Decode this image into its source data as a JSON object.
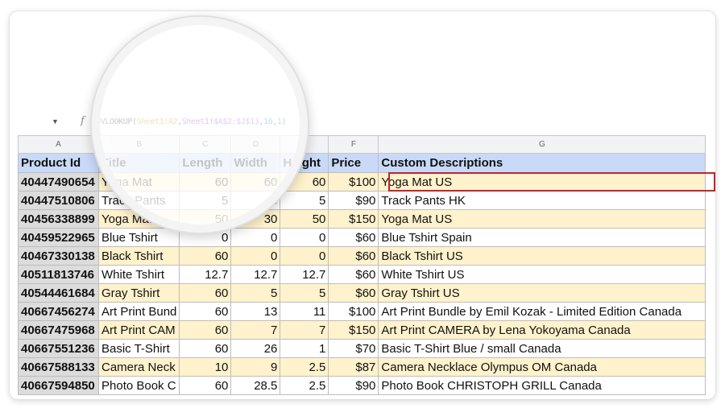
{
  "formula": {
    "func": "=VLOOKUP(",
    "ref1": "Sheet1!A2",
    "comma1": ",",
    "ref2": "Sheet1!$A$2:$J$13",
    "comma2": ",",
    "num1": "10",
    "comma3": ",",
    "num2": "1",
    "close": ")"
  },
  "icons": {
    "name_box_arrow": "dropdown-arrow-icon",
    "fx": "fx-icon"
  },
  "column_letters": [
    "A",
    "B",
    "C",
    "D",
    "E",
    "F",
    "G"
  ],
  "headers": [
    "Product Id",
    "Title",
    "Length",
    "Width",
    "Height",
    "Price",
    "Custom Descriptions"
  ],
  "rows": [
    {
      "id": "40447490654",
      "title": "Yoga Mat",
      "length": "60",
      "width": "60",
      "height": "60",
      "price": "$100",
      "desc": "Yoga Mat US"
    },
    {
      "id": "40447510806",
      "title": "Track Pants",
      "length": "5",
      "width": "5",
      "height": "5",
      "price": "$90",
      "desc": "Track Pants HK"
    },
    {
      "id": "40456338899",
      "title": "Yoga Mat",
      "length": "50",
      "width": "30",
      "height": "50",
      "price": "$150",
      "desc": "Yoga Mat US"
    },
    {
      "id": "40459522965",
      "title": "Blue Tshirt",
      "length": "0",
      "width": "0",
      "height": "0",
      "price": "$60",
      "desc": "Blue Tshirt Spain"
    },
    {
      "id": "40467330138",
      "title": "Black Tshirt",
      "length": "60",
      "width": "0",
      "height": "0",
      "price": "$60",
      "desc": "Black Tshirt US"
    },
    {
      "id": "40511813746",
      "title": "White Tshirt",
      "length": "12.7",
      "width": "12.7",
      "height": "12.7",
      "price": "$60",
      "desc": "White Tshirt US"
    },
    {
      "id": "40544461684",
      "title": "Gray Tshirt",
      "length": "60",
      "width": "5",
      "height": "5",
      "price": "$60",
      "desc": "Gray Tshirt US"
    },
    {
      "id": "40667456274",
      "title": "Art Print Bund",
      "length": "60",
      "width": "13",
      "height": "11",
      "price": "$100",
      "desc": "Art Print Bundle by Emil Kozak - Limited Edition Canada"
    },
    {
      "id": "40667475968",
      "title": "Art Print CAM",
      "length": "60",
      "width": "7",
      "height": "7",
      "price": "$150",
      "desc": "Art Print CAMERA by Lena Yokoyama Canada"
    },
    {
      "id": "40667551236",
      "title": "Basic T-Shirt",
      "length": "60",
      "width": "26",
      "height": "1",
      "price": "$70",
      "desc": "Basic T-Shirt Blue / small Canada"
    },
    {
      "id": "40667588133",
      "title": "Camera Neck",
      "length": "10",
      "width": "9",
      "height": "2.5",
      "price": "$87",
      "desc": "Camera Necklace Olympus OM Canada"
    },
    {
      "id": "40667594850",
      "title": "Photo Book C",
      "length": "60",
      "width": "28.5",
      "height": "2.5",
      "price": "$90",
      "desc": "Photo Book CHRISTOPH GRILL Canada"
    }
  ],
  "colors": {
    "header_bg": "#c9daf8",
    "alt_row_bg": "#fff2cc",
    "id_col_bg": "#dcdcdc",
    "highlight_border": "#c0262d"
  }
}
